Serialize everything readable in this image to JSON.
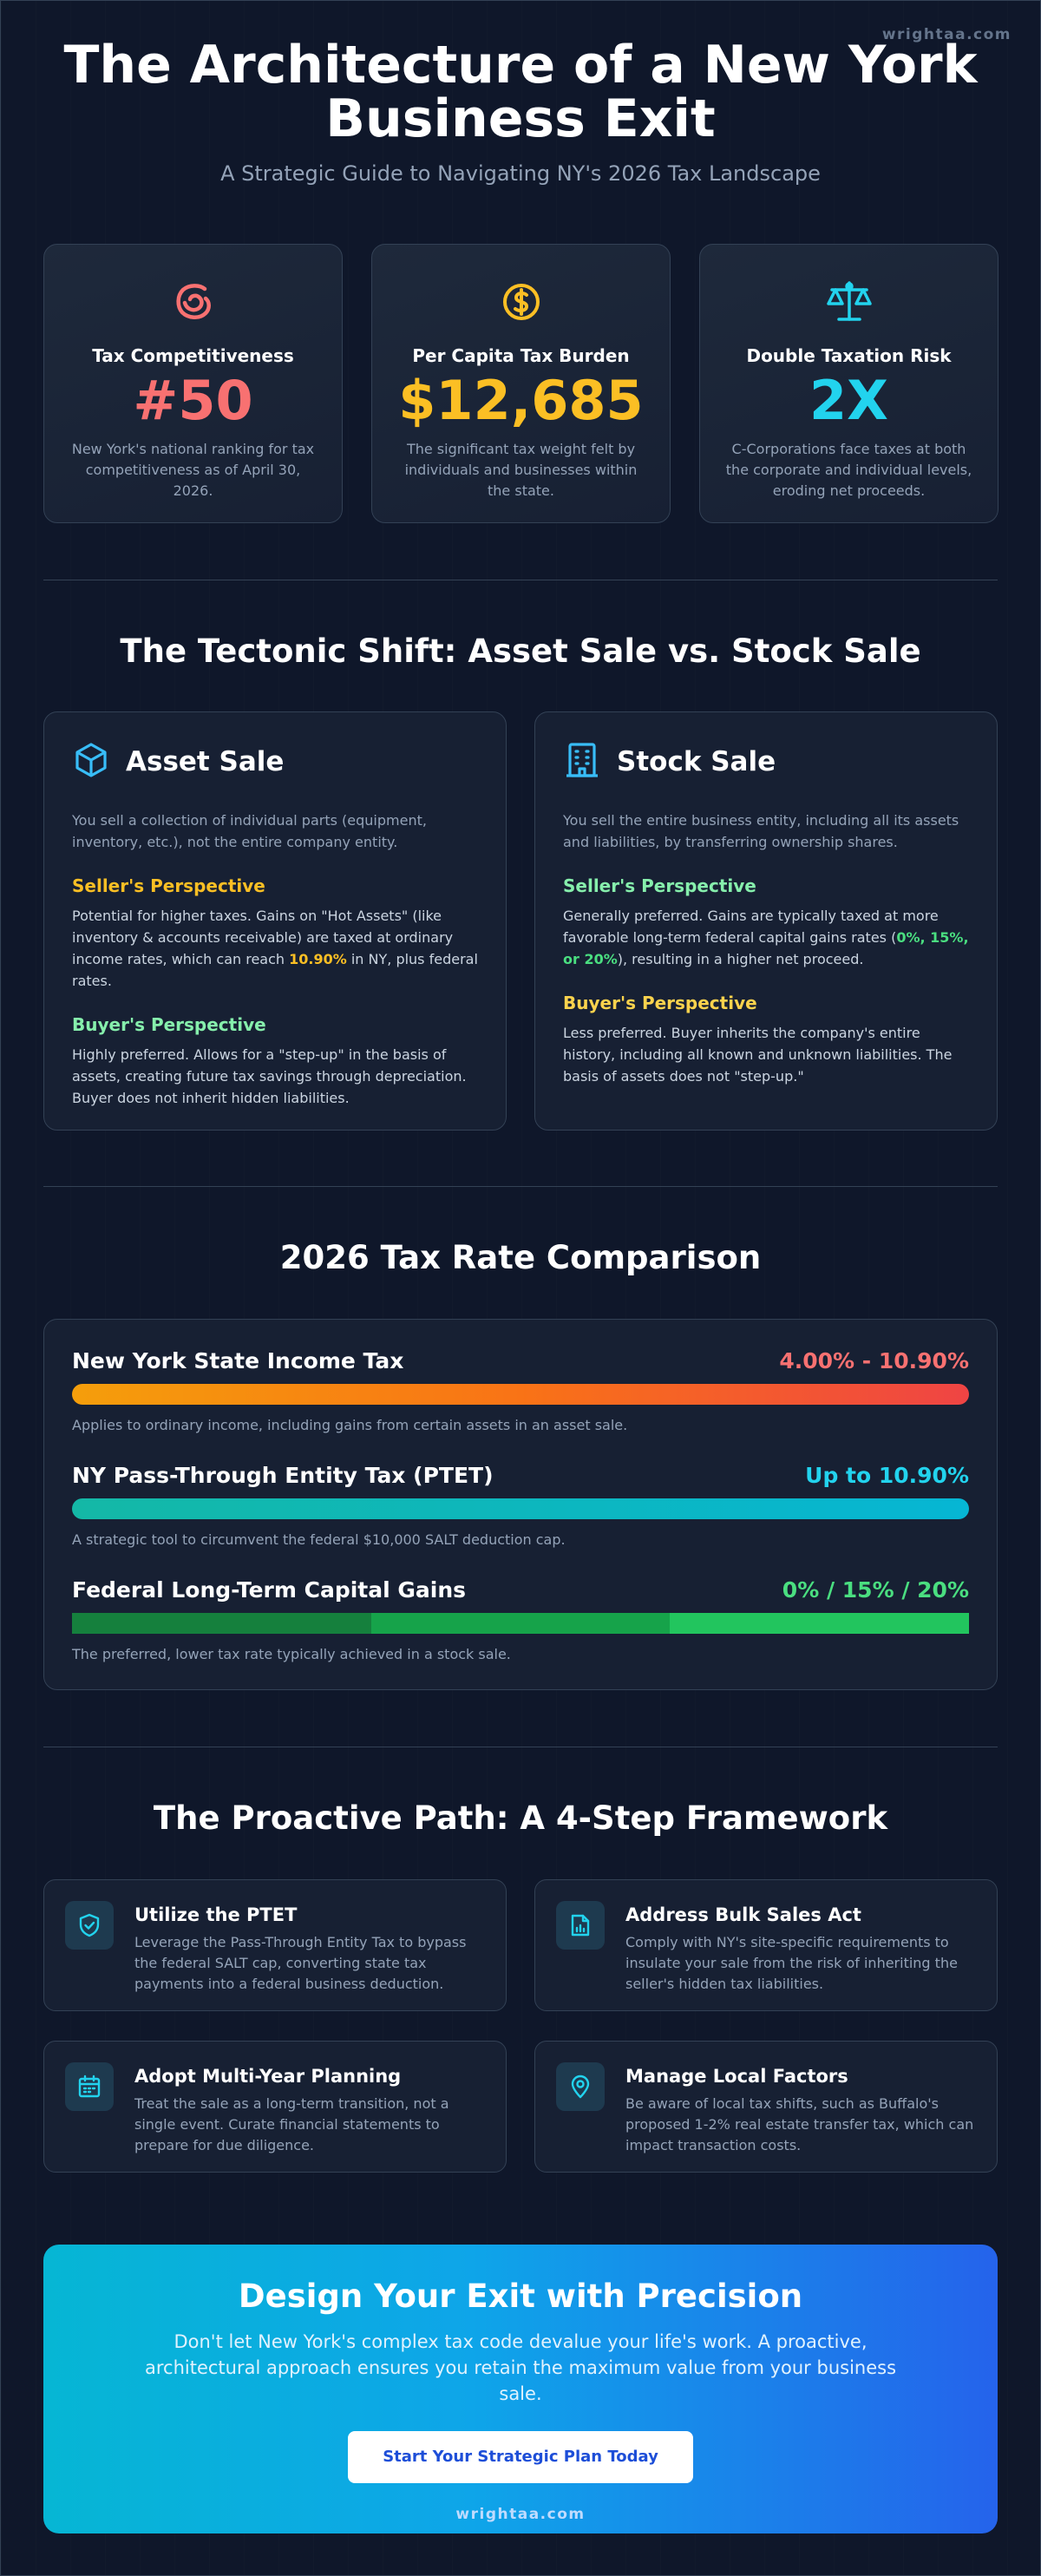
{
  "brand": "wrightaa.com",
  "header": {
    "title_line1": "The Architecture of a New York",
    "title_line2": "Business Exit",
    "subtitle": "A Strategic Guide to Navigating NY's 2026 Tax Landscape"
  },
  "stats": [
    {
      "icon": "smile-swirl-icon",
      "label": "Tax Competitiveness",
      "value": "#50",
      "color": "#f87171",
      "desc": "New York's national ranking for tax competitiveness as of April 30, 2026."
    },
    {
      "icon": "dollar-coin-icon",
      "label": "Per Capita Tax Burden",
      "value": "$12,685",
      "color": "#fbbf24",
      "desc": "The significant tax weight felt by individuals and businesses within the state."
    },
    {
      "icon": "scales-icon",
      "label": "Double Taxation Risk",
      "value": "2X",
      "color": "#22d3ee",
      "desc": "C-Corporations face taxes at both the corporate and individual levels, eroding net proceeds."
    }
  ],
  "shift": {
    "title": "The Tectonic Shift: Asset Sale vs. Stock Sale",
    "asset": {
      "title": "Asset Sale",
      "intro": "You sell a collection of individual parts (equipment, inventory, etc.), not the entire company entity.",
      "seller_heading": "Seller's Perspective",
      "seller_pre": "Potential for higher taxes. Gains on \"Hot Assets\" (like inventory & accounts receivable) are taxed at ordinary income rates, which can reach ",
      "seller_hl": "10.90%",
      "seller_post": " in NY, plus federal rates.",
      "buyer_heading": "Buyer's Perspective",
      "buyer_text": "Highly preferred. Allows for a \"step-up\" in the basis of assets, creating future tax savings through depreciation. Buyer does not inherit hidden liabilities."
    },
    "stock": {
      "title": "Stock Sale",
      "intro": "You sell the entire business entity, including all its assets and liabilities, by transferring ownership shares.",
      "seller_heading": "Seller's Perspective",
      "seller_pre": "Generally preferred. Gains are typically taxed at more favorable long-term federal capital gains rates (",
      "seller_hl": "0%, 15%, or 20%",
      "seller_post": "), resulting in a higher net proceed.",
      "buyer_heading": "Buyer's Perspective",
      "buyer_text": "Less preferred. Buyer inherits the company's entire history, including all known and unknown liabilities. The basis of assets does not \"step-up.\""
    }
  },
  "rates": {
    "title": "2026 Tax Rate Comparison",
    "items": [
      {
        "name": "New York State Income Tax",
        "value": "4.00% - 10.90%",
        "value_color": "#f87171",
        "note": "Applies to ordinary income, including gains from certain assets in an asset sale."
      },
      {
        "name": "NY Pass-Through Entity Tax (PTET)",
        "value": "Up to 10.90%",
        "value_color": "#22d3ee",
        "note": "A strategic tool to circumvent the federal $10,000 SALT deduction cap."
      },
      {
        "name": "Federal Long-Term Capital Gains",
        "value": "0% / 15% / 20%",
        "value_color": "#4ade80",
        "note": "The preferred, lower tax rate typically achieved in a stock sale."
      }
    ]
  },
  "framework": {
    "title": "The Proactive Path: A 4-Step Framework",
    "steps": [
      {
        "icon": "shield-check-icon",
        "title": "Utilize the PTET",
        "text": "Leverage the Pass-Through Entity Tax to bypass the federal SALT cap, converting state tax payments into a federal business deduction."
      },
      {
        "icon": "document-chart-icon",
        "title": "Address Bulk Sales Act",
        "text": "Comply with NY's site-specific requirements to insulate your sale from the risk of inheriting the seller's hidden tax liabilities."
      },
      {
        "icon": "calendar-icon",
        "title": "Adopt Multi-Year Planning",
        "text": "Treat the sale as a long-term transition, not a single event. Curate financial statements to prepare for due diligence."
      },
      {
        "icon": "map-pin-icon",
        "title": "Manage Local Factors",
        "text": "Be aware of local tax shifts, such as Buffalo's proposed 1-2% real estate transfer tax, which can impact transaction costs."
      }
    ]
  },
  "cta": {
    "title": "Design Your Exit with Precision",
    "text": "Don't let New York's complex tax code devalue your life's work. A proactive, architectural approach ensures you retain the maximum value from your business sale.",
    "button": "Start Your Strategic Plan Today",
    "brand": "wrightaa.com"
  }
}
